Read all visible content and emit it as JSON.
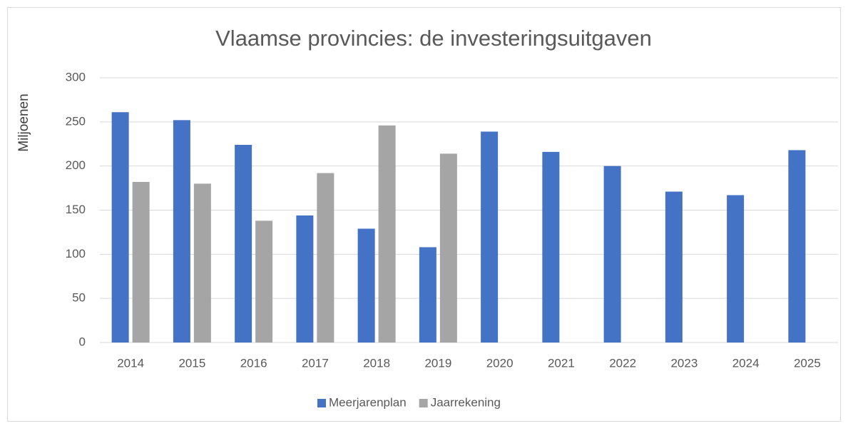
{
  "chart_data": {
    "type": "bar",
    "title": "Vlaamse provincies: de investeringsuitgaven",
    "y_label": "Miljoenen",
    "categories": [
      "2014",
      "2015",
      "2016",
      "2017",
      "2018",
      "2019",
      "2020",
      "2021",
      "2022",
      "2023",
      "2024",
      "2025"
    ],
    "series": [
      {
        "name": "Meerjarenplan",
        "color": "#4472c4",
        "values": [
          261,
          252,
          224,
          144,
          129,
          108,
          239,
          216,
          200,
          171,
          167,
          218
        ]
      },
      {
        "name": "Jaarrekening",
        "color": "#a5a5a5",
        "values": [
          182,
          180,
          138,
          192,
          246,
          214,
          null,
          null,
          null,
          null,
          null,
          null
        ]
      }
    ],
    "ylim": [
      0,
      300
    ],
    "yticks": [
      0,
      50,
      100,
      150,
      200,
      250,
      300
    ],
    "grid": true,
    "legend": "bottom"
  }
}
